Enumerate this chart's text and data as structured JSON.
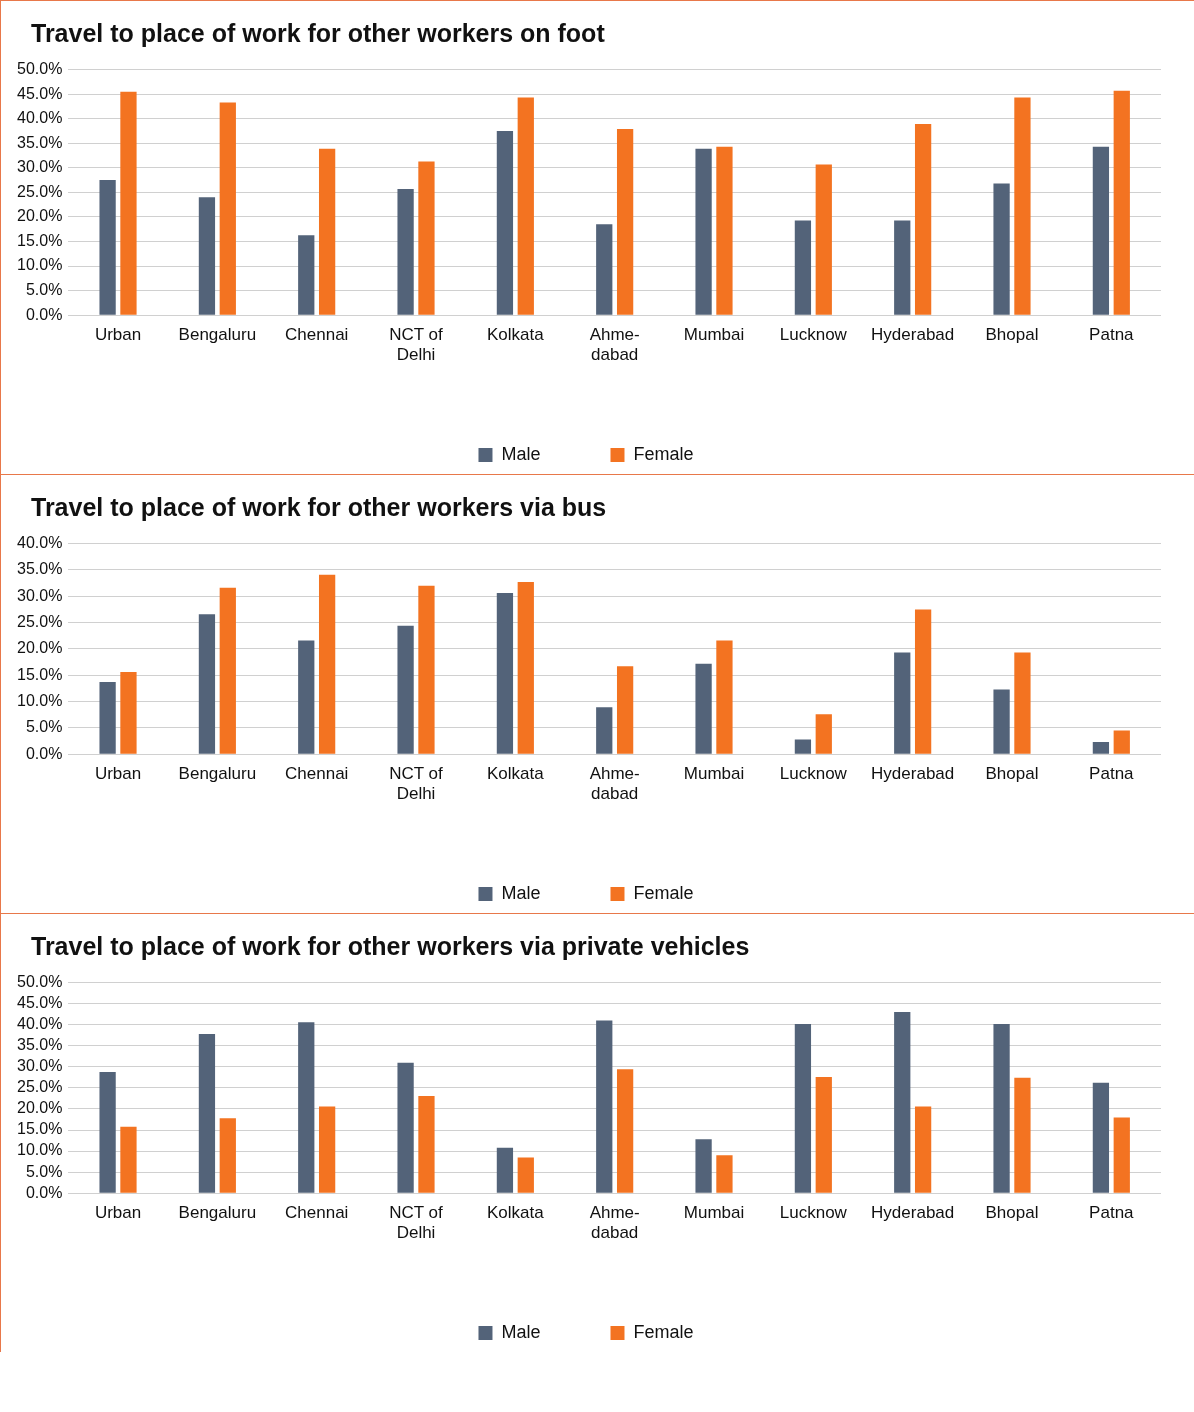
{
  "chart_data": [
    {
      "type": "bar",
      "title": "Travel to place of work for other workers on foot",
      "categories": [
        "Urban",
        "Bengaluru",
        "Chennai",
        "NCT of Delhi",
        "Kolkata",
        "Ahme-dabad",
        "Mumbai",
        "Lucknow",
        "Hyderabad",
        "Bhopal",
        "Patna"
      ],
      "series": [
        {
          "name": "Male",
          "color": "#536379",
          "values": [
            27.5,
            24.0,
            16.3,
            25.7,
            37.5,
            18.5,
            33.9,
            19.3,
            19.3,
            26.8,
            34.3
          ]
        },
        {
          "name": "Female",
          "color": "#f37321",
          "values": [
            45.5,
            43.3,
            33.9,
            31.3,
            44.3,
            37.9,
            34.3,
            30.7,
            38.9,
            44.3,
            45.7
          ]
        }
      ],
      "ylim": [
        0,
        50
      ],
      "yticks": [
        {
          "value": 0,
          "label": "0.0%"
        },
        {
          "value": 5,
          "label": "5.0%"
        },
        {
          "value": 10,
          "label": "10.0%"
        },
        {
          "value": 15,
          "label": "15.0%"
        },
        {
          "value": 20,
          "label": "20.0%"
        },
        {
          "value": 25,
          "label": "25.0%"
        },
        {
          "value": 30,
          "label": "30.0%"
        },
        {
          "value": 35,
          "label": "35.0%"
        },
        {
          "value": 40,
          "label": "40.0%"
        },
        {
          "value": 45,
          "label": "45.0%"
        },
        {
          "value": 50,
          "label": "50.0%"
        }
      ],
      "grid": "y",
      "legend": "bottom"
    },
    {
      "type": "bar",
      "title": "Travel to place of work for other workers via bus",
      "categories": [
        "Urban",
        "Bengaluru",
        "Chennai",
        "NCT of Delhi",
        "Kolkata",
        "Ahme-dabad",
        "Mumbai",
        "Lucknow",
        "Hyderabad",
        "Bhopal",
        "Patna"
      ],
      "series": [
        {
          "name": "Male",
          "color": "#536379",
          "values": [
            13.7,
            26.6,
            21.6,
            24.4,
            30.6,
            8.9,
            17.2,
            2.8,
            19.3,
            12.3,
            2.3
          ]
        },
        {
          "name": "Female",
          "color": "#f37321",
          "values": [
            15.6,
            31.6,
            34.1,
            32.0,
            32.7,
            16.7,
            21.6,
            7.6,
            27.5,
            19.3,
            4.5
          ]
        }
      ],
      "ylim": [
        0,
        40
      ],
      "yticks": [
        {
          "value": 0,
          "label": "0.0%"
        },
        {
          "value": 5,
          "label": "5.0%"
        },
        {
          "value": 10,
          "label": "10.0%"
        },
        {
          "value": 15,
          "label": "15.0%"
        },
        {
          "value": 20,
          "label": "20.0%"
        },
        {
          "value": 25,
          "label": "25.0%"
        },
        {
          "value": 30,
          "label": "30.0%"
        },
        {
          "value": 35,
          "label": "35.0%"
        },
        {
          "value": 40,
          "label": "40.0%"
        }
      ],
      "grid": "y",
      "legend": "bottom"
    },
    {
      "type": "bar",
      "title": "Travel to place of work for other workers via private vehicles",
      "categories": [
        "Urban",
        "Bengaluru",
        "Chennai",
        "NCT of Delhi",
        "Kolkata",
        "Ahme-dabad",
        "Mumbai",
        "Lucknow",
        "Hyderabad",
        "Bhopal",
        "Patna"
      ],
      "series": [
        {
          "name": "Male",
          "color": "#536379",
          "values": [
            28.8,
            37.8,
            40.6,
            31.0,
            10.8,
            41.0,
            12.8,
            40.2,
            43.0,
            40.2,
            26.2
          ]
        },
        {
          "name": "Female",
          "color": "#f37321",
          "values": [
            15.8,
            17.8,
            20.6,
            23.1,
            8.5,
            29.4,
            9.0,
            27.6,
            20.6,
            27.4,
            18.0
          ]
        }
      ],
      "ylim": [
        0,
        50
      ],
      "yticks": [
        {
          "value": 0,
          "label": "0.0%"
        },
        {
          "value": 5,
          "label": "5.0%"
        },
        {
          "value": 10,
          "label": "10.0%"
        },
        {
          "value": 15,
          "label": "15.0%"
        },
        {
          "value": 20,
          "label": "20.0%"
        },
        {
          "value": 25,
          "label": "25.0%"
        },
        {
          "value": 30,
          "label": "30.0%"
        },
        {
          "value": 35,
          "label": "35.0%"
        },
        {
          "value": 40,
          "label": "40.0%"
        },
        {
          "value": 45,
          "label": "45.0%"
        },
        {
          "value": 50,
          "label": "50.0%"
        }
      ],
      "grid": "y",
      "legend": "bottom"
    }
  ]
}
